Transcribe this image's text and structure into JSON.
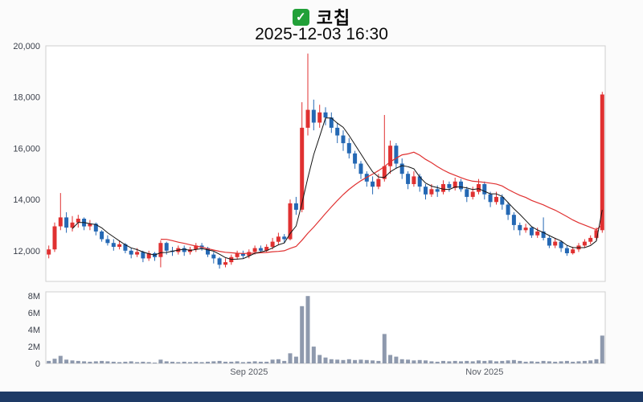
{
  "header": {
    "checkbox_state": "checked",
    "check_glyph": "✓",
    "title": "코칩",
    "datetime": "2025-12-03 16:30"
  },
  "chart_data": {
    "type": "candlestick",
    "title": "코칩",
    "subtitle": "2025-12-03 16:30",
    "legend_position": "none",
    "grid": false,
    "price_axis": {
      "min": 10800,
      "max": 20000,
      "ticks": [
        12000,
        14000,
        16000,
        18000,
        20000
      ],
      "tick_labels": [
        "12,000",
        "14,000",
        "16,000",
        "18,000",
        "20,000"
      ]
    },
    "volume_axis": {
      "max": 8500000,
      "ticks": [
        0,
        2000000,
        4000000,
        6000000,
        8000000
      ],
      "labels": [
        "0",
        "2M",
        "4M",
        "6M",
        "8M"
      ]
    },
    "x_ticks": [
      {
        "label": "Sep 2025",
        "index": 34
      },
      {
        "label": "Nov 2025",
        "index": 74
      }
    ],
    "ma_periods": {
      "short": 5,
      "long": 20
    },
    "colors": {
      "up": "#e03131",
      "down": "#2468b4",
      "ma_short": "#141414",
      "ma_long": "#e03131",
      "volume": "#8e99ad",
      "panel_border": "#cfcfcf",
      "panel_bg": "#ffffff",
      "footer": "#1e3a66",
      "checkbox": "#21a038"
    },
    "candles_format": [
      "open",
      "high",
      "low",
      "close",
      "volume"
    ],
    "candles": [
      [
        11850,
        12200,
        11700,
        12050,
        300000
      ],
      [
        12050,
        13100,
        11950,
        12950,
        550000
      ],
      [
        12950,
        14250,
        12800,
        13300,
        900000
      ],
      [
        13300,
        13500,
        12700,
        12900,
        450000
      ],
      [
        12900,
        13350,
        12750,
        13100,
        350000
      ],
      [
        13100,
        13400,
        12900,
        13250,
        300000
      ],
      [
        13250,
        13300,
        12800,
        12950,
        250000
      ],
      [
        12950,
        13200,
        12800,
        13050,
        200000
      ],
      [
        13050,
        13100,
        12600,
        12750,
        250000
      ],
      [
        12750,
        12800,
        12350,
        12450,
        300000
      ],
      [
        12450,
        12600,
        12200,
        12300,
        250000
      ],
      [
        12300,
        12450,
        12000,
        12150,
        200000
      ],
      [
        12150,
        12400,
        12050,
        12250,
        150000
      ],
      [
        12250,
        12300,
        11900,
        12000,
        200000
      ],
      [
        12000,
        12100,
        11700,
        11850,
        250000
      ],
      [
        11850,
        12100,
        11750,
        11950,
        150000
      ],
      [
        11950,
        12000,
        11550,
        11700,
        200000
      ],
      [
        11700,
        12000,
        11600,
        11900,
        150000
      ],
      [
        11900,
        11950,
        11600,
        11750,
        100000
      ],
      [
        11750,
        12400,
        11350,
        12300,
        450000
      ],
      [
        12300,
        12350,
        11850,
        12000,
        250000
      ],
      [
        12000,
        12150,
        11800,
        11950,
        200000
      ],
      [
        11950,
        12200,
        11850,
        12100,
        150000
      ],
      [
        12100,
        12200,
        11800,
        11950,
        200000
      ],
      [
        11950,
        12150,
        11850,
        12050,
        150000
      ],
      [
        12050,
        12300,
        11950,
        12200,
        200000
      ],
      [
        12200,
        12300,
        12000,
        12100,
        150000
      ],
      [
        12100,
        12150,
        11750,
        11850,
        200000
      ],
      [
        11850,
        11950,
        11500,
        11700,
        250000
      ],
      [
        11700,
        11750,
        11300,
        11450,
        300000
      ],
      [
        11450,
        11700,
        11350,
        11550,
        200000
      ],
      [
        11550,
        11850,
        11450,
        11750,
        200000
      ],
      [
        11750,
        12000,
        11650,
        11900,
        250000
      ],
      [
        11900,
        12000,
        11700,
        11800,
        150000
      ],
      [
        11800,
        12050,
        11700,
        11950,
        200000
      ],
      [
        11950,
        12200,
        11850,
        12100,
        250000
      ],
      [
        12100,
        12200,
        11900,
        12000,
        200000
      ],
      [
        12000,
        12250,
        11950,
        12150,
        200000
      ],
      [
        12150,
        12500,
        12050,
        12350,
        450000
      ],
      [
        12350,
        12700,
        12250,
        12550,
        500000
      ],
      [
        12550,
        12650,
        12300,
        12450,
        300000
      ],
      [
        12450,
        14000,
        12400,
        13850,
        1200000
      ],
      [
        13850,
        14100,
        13400,
        13600,
        800000
      ],
      [
        13600,
        17800,
        13500,
        16800,
        6800000
      ],
      [
        16800,
        19700,
        16500,
        17500,
        8000000
      ],
      [
        17500,
        17900,
        16700,
        17000,
        2000000
      ],
      [
        17000,
        17700,
        16800,
        17400,
        1000000
      ],
      [
        17400,
        17600,
        16900,
        17200,
        700000
      ],
      [
        17200,
        17400,
        16600,
        16800,
        500000
      ],
      [
        16800,
        17000,
        16200,
        16500,
        450000
      ],
      [
        16500,
        16700,
        15900,
        16200,
        400000
      ],
      [
        16200,
        16400,
        15600,
        15800,
        500000
      ],
      [
        15800,
        15900,
        15200,
        15400,
        400000
      ],
      [
        15400,
        15500,
        14800,
        15000,
        450000
      ],
      [
        15000,
        15100,
        14500,
        14700,
        400000
      ],
      [
        14700,
        14900,
        14200,
        14500,
        350000
      ],
      [
        14500,
        15000,
        14400,
        14800,
        300000
      ],
      [
        14800,
        17300,
        14700,
        15300,
        3500000
      ],
      [
        15300,
        16300,
        15000,
        16100,
        1000000
      ],
      [
        16100,
        16200,
        15200,
        15400,
        800000
      ],
      [
        15400,
        15600,
        14800,
        15000,
        500000
      ],
      [
        15000,
        15100,
        14400,
        14600,
        450000
      ],
      [
        14600,
        15100,
        14500,
        14900,
        350000
      ],
      [
        14900,
        15000,
        14300,
        14500,
        400000
      ],
      [
        14500,
        14600,
        14000,
        14200,
        350000
      ],
      [
        14200,
        14600,
        14100,
        14400,
        250000
      ],
      [
        14400,
        14550,
        14100,
        14300,
        200000
      ],
      [
        14300,
        14750,
        14200,
        14600,
        300000
      ],
      [
        14600,
        14700,
        14300,
        14450,
        250000
      ],
      [
        14450,
        14850,
        14350,
        14700,
        300000
      ],
      [
        14700,
        14800,
        14300,
        14400,
        250000
      ],
      [
        14400,
        14500,
        13900,
        14100,
        300000
      ],
      [
        14100,
        14500,
        14000,
        14300,
        250000
      ],
      [
        14300,
        14800,
        14200,
        14600,
        350000
      ],
      [
        14600,
        14700,
        14000,
        14200,
        300000
      ],
      [
        14200,
        14300,
        13700,
        13900,
        350000
      ],
      [
        13900,
        14300,
        13800,
        14100,
        250000
      ],
      [
        14100,
        14200,
        13600,
        13800,
        300000
      ],
      [
        13800,
        13900,
        13200,
        13400,
        350000
      ],
      [
        13400,
        13500,
        12800,
        13000,
        400000
      ],
      [
        13000,
        13100,
        12600,
        12800,
        300000
      ],
      [
        12800,
        13050,
        12700,
        12900,
        200000
      ],
      [
        12900,
        12950,
        12500,
        12600,
        250000
      ],
      [
        12600,
        12900,
        12500,
        12750,
        200000
      ],
      [
        12750,
        13300,
        12400,
        12500,
        300000
      ],
      [
        12500,
        12600,
        12100,
        12200,
        250000
      ],
      [
        12200,
        12500,
        12100,
        12350,
        200000
      ],
      [
        12350,
        12400,
        11950,
        12100,
        250000
      ],
      [
        12100,
        12200,
        11800,
        11900,
        300000
      ],
      [
        11900,
        12150,
        11850,
        12050,
        200000
      ],
      [
        12050,
        12300,
        11950,
        12200,
        250000
      ],
      [
        12200,
        12450,
        12100,
        12350,
        300000
      ],
      [
        12350,
        12600,
        12250,
        12500,
        350000
      ],
      [
        12500,
        12900,
        12400,
        12800,
        500000
      ],
      [
        12800,
        18200,
        12700,
        18100,
        3300000
      ]
    ]
  }
}
